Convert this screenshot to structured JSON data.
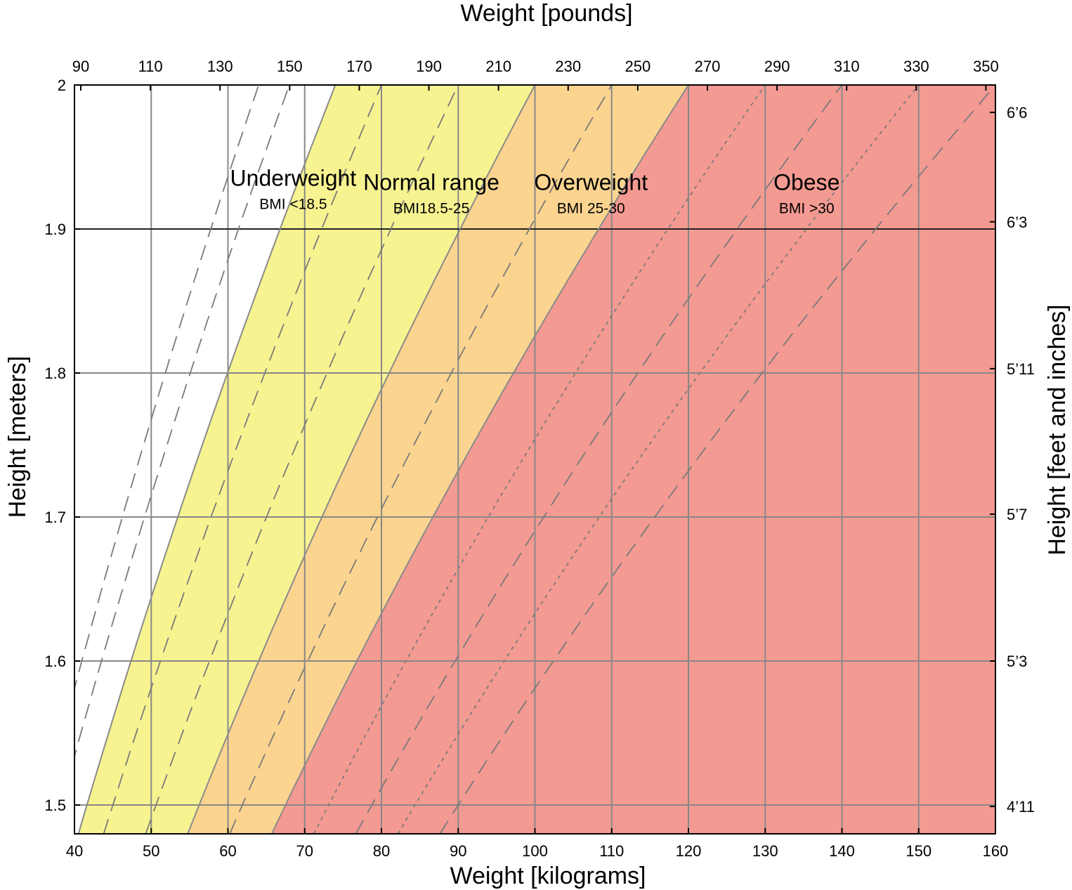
{
  "chart_data": {
    "type": "area",
    "title": "",
    "xlabel": "Weight [kilograms]",
    "x2label": "Weight [pounds]",
    "ylabel": "Height [meters]",
    "y2label": "Height [feet and inches]",
    "xlim": [
      40,
      160
    ],
    "ylim": [
      1.48,
      2.0
    ],
    "x_ticks": [
      40,
      50,
      60,
      70,
      80,
      90,
      100,
      110,
      120,
      130,
      140,
      150,
      160
    ],
    "y_ticks": [
      1.5,
      1.6,
      1.7,
      1.8,
      1.9,
      2
    ],
    "y_tick_labels": [
      "1.5",
      "1.6",
      "1.7",
      "1.8",
      "1.9",
      "2"
    ],
    "x2_ticks": [
      {
        "label": "90",
        "lb": 90
      },
      {
        "label": "110",
        "lb": 110
      },
      {
        "label": "130",
        "lb": 130
      },
      {
        "label": "150",
        "lb": 150
      },
      {
        "label": "170",
        "lb": 170
      },
      {
        "label": "190",
        "lb": 190
      },
      {
        "label": "210",
        "lb": 210
      },
      {
        "label": "230",
        "lb": 230
      },
      {
        "label": "250",
        "lb": 250
      },
      {
        "label": "270",
        "lb": 270
      },
      {
        "label": "290",
        "lb": 290
      },
      {
        "label": "310",
        "lb": 310
      },
      {
        "label": "330",
        "lb": 330
      },
      {
        "label": "350",
        "lb": 350
      }
    ],
    "y2_ticks": [
      {
        "label": "4’11",
        "m": 1.499
      },
      {
        "label": "5’3",
        "m": 1.6
      },
      {
        "label": "5’7",
        "m": 1.702
      },
      {
        "label": "5’11",
        "m": 1.803
      },
      {
        "label": "6’3",
        "m": 1.905
      },
      {
        "label": "6’6",
        "m": 1.981
      }
    ],
    "grid": true,
    "bmi_thresholds": [
      18.5,
      25,
      30
    ],
    "zones": [
      {
        "name": "Underweight",
        "range": "BMI <18.5",
        "bmi_min": 0,
        "bmi_max": 18.5,
        "color": "#ffffff",
        "label_kg": 68.5,
        "label_m": 1.93
      },
      {
        "name": "Normal range",
        "range": "BMI18.5-25",
        "bmi_min": 18.5,
        "bmi_max": 25,
        "color": "#f7f391",
        "label_kg": 86.5,
        "label_m": 1.927
      },
      {
        "name": "Overweight",
        "range": "BMI 25-30",
        "bmi_min": 25,
        "bmi_max": 30,
        "color": "#fbd490",
        "label_kg": 107.3,
        "label_m": 1.927
      },
      {
        "name": "Obese",
        "range": "BMI >30",
        "bmi_min": 30,
        "bmi_max": 100,
        "color": "#f39a92",
        "label_kg": 135.4,
        "label_m": 1.927
      }
    ],
    "dashed_bmi_lines": [
      {
        "bmi": 16,
        "style": "long-dash"
      },
      {
        "bmi": 17,
        "style": "long-dash"
      },
      {
        "bmi": 20,
        "style": "long-dash"
      },
      {
        "bmi": 22.5,
        "style": "long-dash"
      },
      {
        "bmi": 27.5,
        "style": "long-dash"
      },
      {
        "bmi": 32.5,
        "style": "short-dash"
      },
      {
        "bmi": 35,
        "style": "long-dash"
      },
      {
        "bmi": 37.5,
        "style": "short-dash"
      },
      {
        "bmi": 40,
        "style": "long-dash"
      }
    ]
  }
}
